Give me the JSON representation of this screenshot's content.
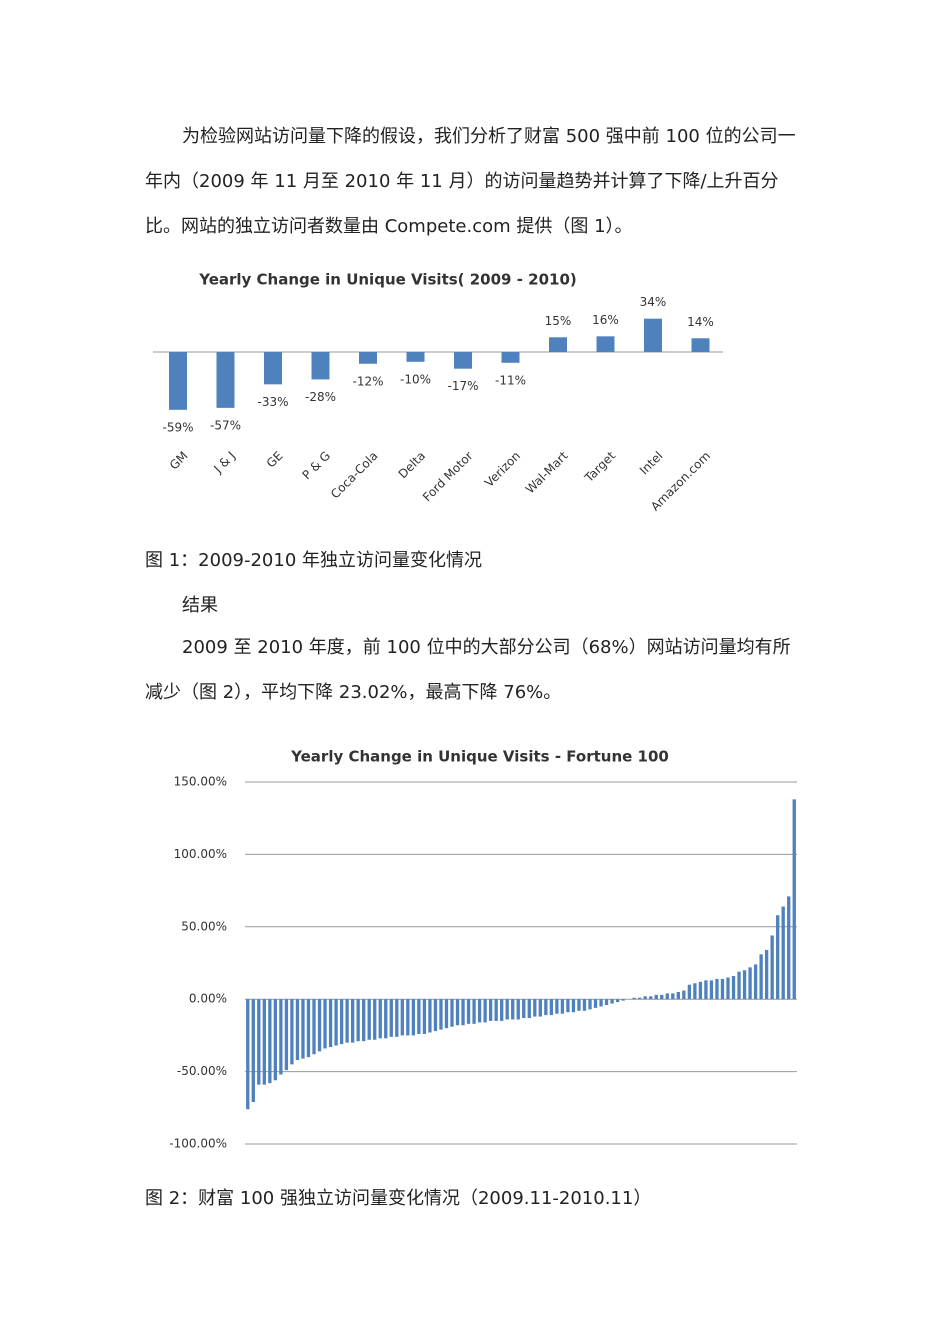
{
  "document": {
    "paragraph_1": "为检验网站访问量下降的假设，我们分析了财富 500 强中前 100 位的公司一年内（2009 年 11 月至 2010 年 11 月）的访问量趋势并计算了下降/上升百分比。网站的独立访问者数量由 Compete.com 提供（图 1）。",
    "figure_1_caption": "图 1：2009-2010 年独立访问量变化情况",
    "heading": "结果",
    "paragraph_2": "2009 至 2010 年度，前 100 位中的大部分公司（68%）网站访问量均有所减少（图 2），平均下降 23.02%，最高下降 76%。",
    "figure_2_caption": "图 2：财富 100 强独立访问量变化情况（2009.11-2010.11）"
  },
  "chart_data": [
    {
      "type": "bar",
      "title": "Yearly Change in Unique Visits( 2009 - 2010)",
      "categories": [
        "GM",
        "J & J",
        "GE",
        "P & G",
        "Coca-Cola",
        "Delta",
        "Ford Motor",
        "Verizon",
        "Wal-Mart",
        "Target",
        "Intel",
        "Amazon.com"
      ],
      "values": [
        -59,
        -57,
        -33,
        -28,
        -12,
        -10,
        -17,
        -11,
        15,
        16,
        34,
        14
      ],
      "value_labels": [
        "-59%",
        "-57%",
        "-33%",
        "-28%",
        "-12%",
        "-10%",
        "-17%",
        "-11%",
        "15%",
        "16%",
        "34%",
        "14%"
      ],
      "color": "#4f81bd"
    },
    {
      "type": "bar",
      "title": "Yearly Change in Unique Visits - Fortune 100",
      "values": [
        -76,
        -71,
        -59,
        -59,
        -58,
        -56,
        -52,
        -49,
        -45,
        -42,
        -41,
        -40,
        -38,
        -36,
        -34,
        -33,
        -32,
        -31,
        -30,
        -30,
        -29,
        -29,
        -28,
        -28,
        -27,
        -27,
        -26,
        -26,
        -25,
        -25,
        -25,
        -24,
        -24,
        -23,
        -22,
        -21,
        -20,
        -19,
        -18,
        -18,
        -17,
        -17,
        -16,
        -16,
        -15,
        -15,
        -15,
        -14,
        -14,
        -14,
        -13,
        -13,
        -12,
        -12,
        -11,
        -11,
        -10,
        -10,
        -9,
        -9,
        -8,
        -8,
        -7,
        -6,
        -5,
        -4,
        -3,
        -2,
        -1,
        0,
        1,
        1,
        2,
        2,
        3,
        3,
        4,
        4,
        5,
        6,
        10,
        11,
        12,
        13,
        13,
        14,
        14,
        15,
        16,
        19,
        20,
        22,
        24,
        31,
        34,
        44,
        58,
        64,
        71,
        138
      ],
      "color": "#4f81bd",
      "ylim": [
        -100,
        150
      ],
      "yticks": [
        {
          "value": -100,
          "label": "-100.00%"
        },
        {
          "value": -50,
          "label": "-50.00%"
        },
        {
          "value": 0,
          "label": "0.00%"
        },
        {
          "value": 50,
          "label": "50.00%"
        },
        {
          "value": 100,
          "label": "100.00%"
        },
        {
          "value": 150,
          "label": "150.00%"
        }
      ],
      "grid": true
    }
  ]
}
